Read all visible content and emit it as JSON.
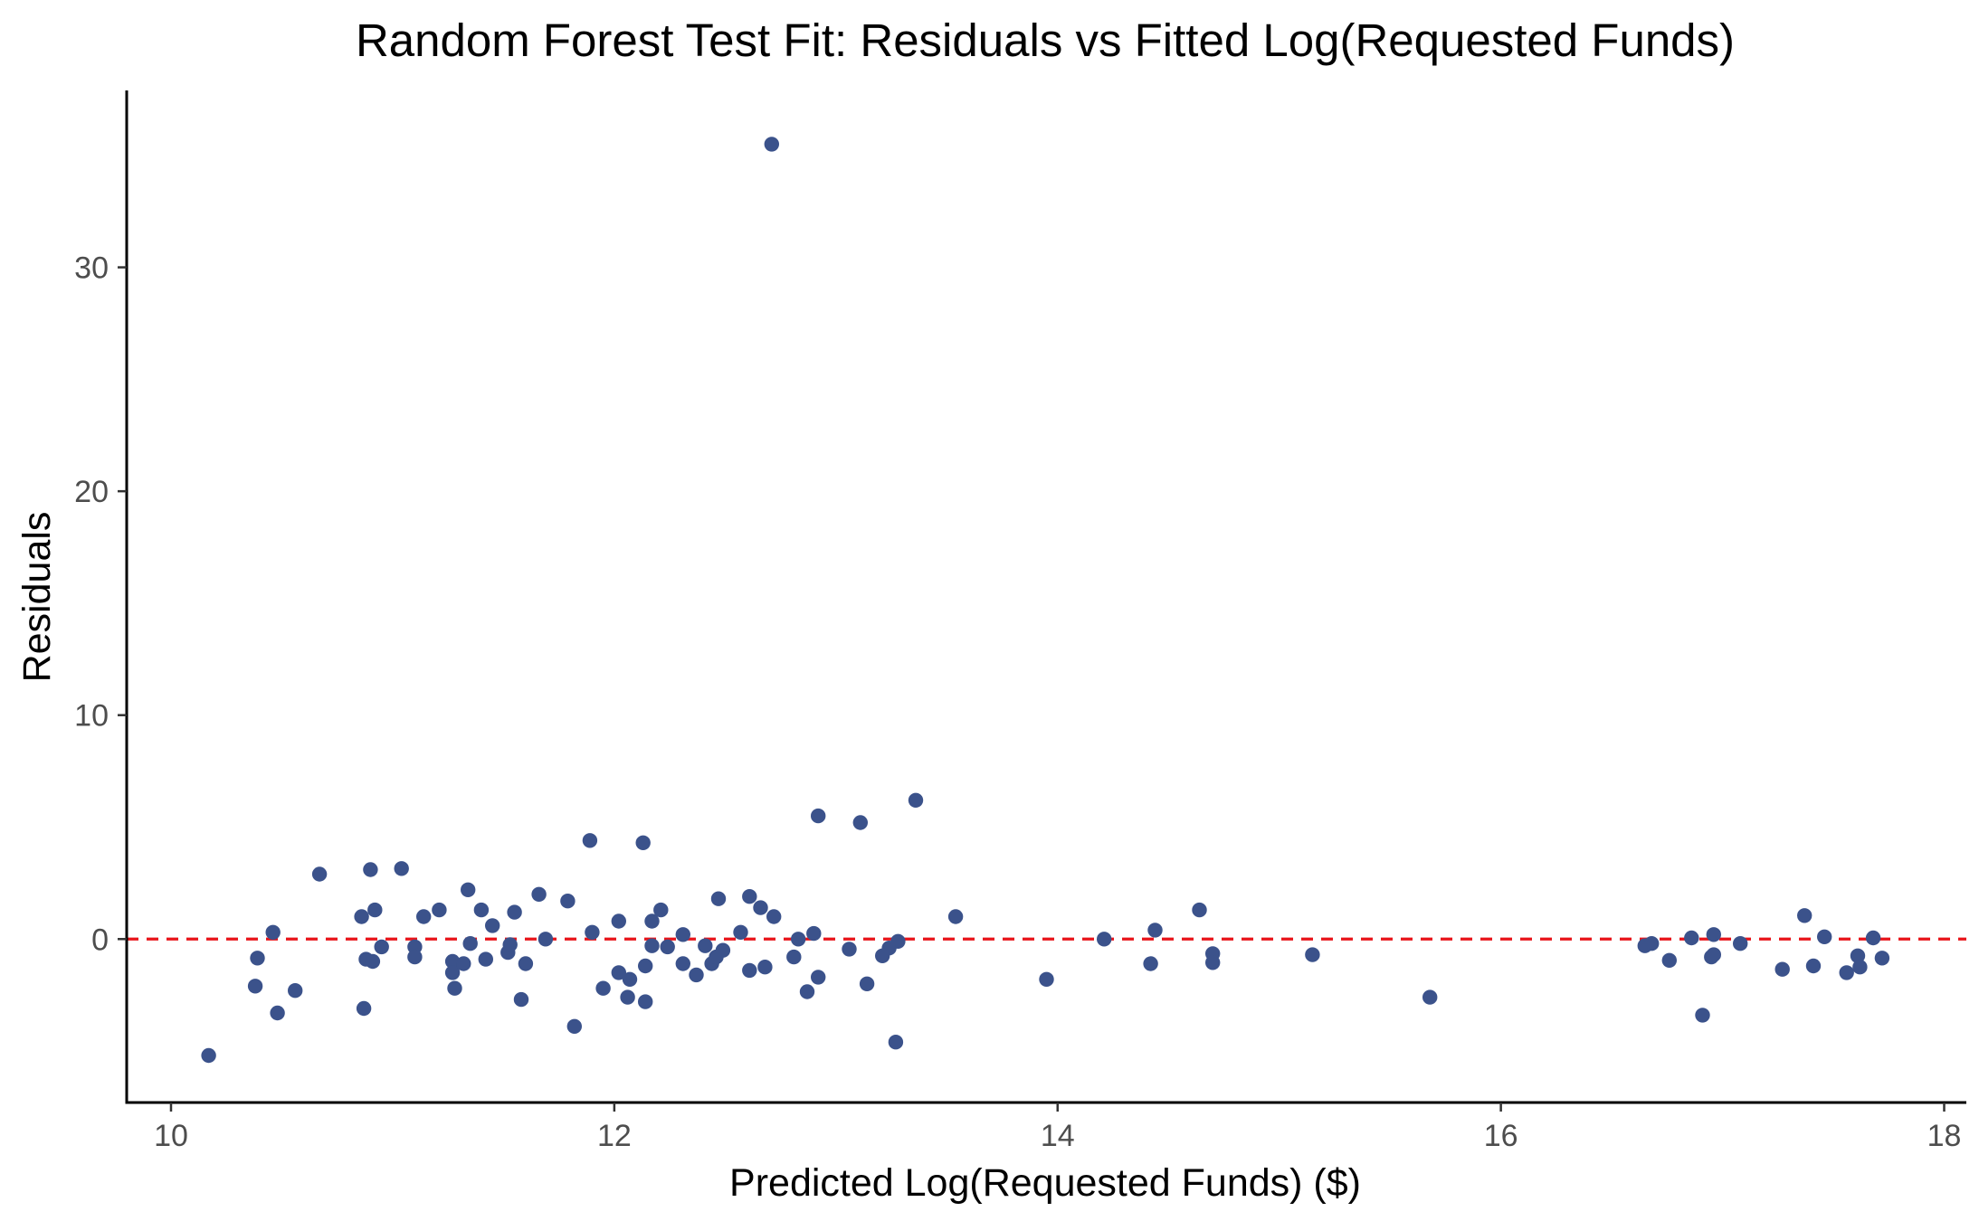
{
  "chart_data": {
    "type": "scatter",
    "title": "Random Forest Test Fit: Residuals vs Fitted Log(Requested Funds)",
    "xlabel": "Predicted Log(Requested Funds) ($)",
    "ylabel": "Residuals",
    "xlim": [
      9.8,
      18.1
    ],
    "ylim": [
      -7.3,
      37.9
    ],
    "xticks": [
      10,
      12,
      14,
      16,
      18
    ],
    "yticks": [
      0,
      10,
      20,
      30
    ],
    "grid": false,
    "reference_line": {
      "y": 0,
      "style": "dashed",
      "color": "#e8141a"
    },
    "point_color": "#3b528b",
    "axis_color": "#000000",
    "points": [
      {
        "x": 10.17,
        "y": -5.2
      },
      {
        "x": 10.38,
        "y": -2.1
      },
      {
        "x": 10.39,
        "y": -0.85
      },
      {
        "x": 10.46,
        "y": 0.3
      },
      {
        "x": 10.48,
        "y": -3.3
      },
      {
        "x": 10.56,
        "y": -2.3
      },
      {
        "x": 10.67,
        "y": 2.9
      },
      {
        "x": 10.86,
        "y": 1.0
      },
      {
        "x": 10.87,
        "y": -3.1
      },
      {
        "x": 10.88,
        "y": -0.9
      },
      {
        "x": 10.9,
        "y": 3.1
      },
      {
        "x": 10.91,
        "y": -1.0
      },
      {
        "x": 10.92,
        "y": 1.3
      },
      {
        "x": 10.95,
        "y": -0.35
      },
      {
        "x": 11.04,
        "y": 3.15
      },
      {
        "x": 11.1,
        "y": -0.35
      },
      {
        "x": 11.1,
        "y": -0.8
      },
      {
        "x": 11.14,
        "y": 1.0
      },
      {
        "x": 11.21,
        "y": 1.3
      },
      {
        "x": 11.27,
        "y": -1.0
      },
      {
        "x": 11.27,
        "y": -1.5
      },
      {
        "x": 11.28,
        "y": -2.2
      },
      {
        "x": 11.32,
        "y": -1.1
      },
      {
        "x": 11.34,
        "y": 2.2
      },
      {
        "x": 11.35,
        "y": -0.2
      },
      {
        "x": 11.4,
        "y": 1.3
      },
      {
        "x": 11.42,
        "y": -0.9
      },
      {
        "x": 11.45,
        "y": 0.6
      },
      {
        "x": 11.52,
        "y": -0.6
      },
      {
        "x": 11.53,
        "y": -0.25
      },
      {
        "x": 11.55,
        "y": 1.2
      },
      {
        "x": 11.58,
        "y": -2.7
      },
      {
        "x": 11.6,
        "y": -1.1
      },
      {
        "x": 11.66,
        "y": 2.0
      },
      {
        "x": 11.69,
        "y": 0.0
      },
      {
        "x": 11.79,
        "y": 1.7
      },
      {
        "x": 11.82,
        "y": -3.9
      },
      {
        "x": 11.89,
        "y": 4.4
      },
      {
        "x": 11.9,
        "y": 0.3
      },
      {
        "x": 11.95,
        "y": -2.2
      },
      {
        "x": 12.02,
        "y": -1.5
      },
      {
        "x": 12.02,
        "y": 0.8
      },
      {
        "x": 12.06,
        "y": -2.6
      },
      {
        "x": 12.07,
        "y": -1.8
      },
      {
        "x": 12.13,
        "y": 4.3
      },
      {
        "x": 12.14,
        "y": -1.2
      },
      {
        "x": 12.14,
        "y": -2.8
      },
      {
        "x": 12.17,
        "y": 0.8
      },
      {
        "x": 12.17,
        "y": -0.3
      },
      {
        "x": 12.21,
        "y": 1.3
      },
      {
        "x": 12.24,
        "y": -0.35
      },
      {
        "x": 12.31,
        "y": 0.2
      },
      {
        "x": 12.31,
        "y": -1.1
      },
      {
        "x": 12.37,
        "y": -1.6
      },
      {
        "x": 12.41,
        "y": -0.3
      },
      {
        "x": 12.44,
        "y": -1.1
      },
      {
        "x": 12.46,
        "y": -0.8
      },
      {
        "x": 12.47,
        "y": 1.8
      },
      {
        "x": 12.49,
        "y": -0.5
      },
      {
        "x": 12.57,
        "y": 0.3
      },
      {
        "x": 12.61,
        "y": 1.9
      },
      {
        "x": 12.61,
        "y": -1.4
      },
      {
        "x": 12.66,
        "y": 1.4
      },
      {
        "x": 12.68,
        "y": -1.25
      },
      {
        "x": 12.71,
        "y": 35.5
      },
      {
        "x": 12.72,
        "y": 1.0
      },
      {
        "x": 12.81,
        "y": -0.8
      },
      {
        "x": 12.83,
        "y": 0.0
      },
      {
        "x": 12.87,
        "y": -2.35
      },
      {
        "x": 12.9,
        "y": 0.25
      },
      {
        "x": 12.92,
        "y": 5.5
      },
      {
        "x": 12.92,
        "y": -1.7
      },
      {
        "x": 13.06,
        "y": -0.45
      },
      {
        "x": 13.11,
        "y": 5.2
      },
      {
        "x": 13.14,
        "y": -2.0
      },
      {
        "x": 13.21,
        "y": -0.75
      },
      {
        "x": 13.24,
        "y": -0.4
      },
      {
        "x": 13.27,
        "y": -4.6
      },
      {
        "x": 13.28,
        "y": -0.1
      },
      {
        "x": 13.36,
        "y": 6.2
      },
      {
        "x": 13.54,
        "y": 1.0
      },
      {
        "x": 13.95,
        "y": -1.8
      },
      {
        "x": 14.21,
        "y": 0.0
      },
      {
        "x": 14.42,
        "y": -1.1
      },
      {
        "x": 14.44,
        "y": 0.4
      },
      {
        "x": 14.64,
        "y": 1.3
      },
      {
        "x": 14.7,
        "y": -0.65
      },
      {
        "x": 14.7,
        "y": -1.05
      },
      {
        "x": 15.15,
        "y": -0.7
      },
      {
        "x": 15.68,
        "y": -2.6
      },
      {
        "x": 16.65,
        "y": -0.3
      },
      {
        "x": 16.68,
        "y": -0.2
      },
      {
        "x": 16.76,
        "y": -0.95
      },
      {
        "x": 16.86,
        "y": 0.05
      },
      {
        "x": 16.91,
        "y": -3.4
      },
      {
        "x": 16.95,
        "y": -0.8
      },
      {
        "x": 16.96,
        "y": 0.2
      },
      {
        "x": 16.96,
        "y": -0.7
      },
      {
        "x": 17.08,
        "y": -0.2
      },
      {
        "x": 17.27,
        "y": -1.35
      },
      {
        "x": 17.37,
        "y": 1.05
      },
      {
        "x": 17.41,
        "y": -1.2
      },
      {
        "x": 17.46,
        "y": 0.1
      },
      {
        "x": 17.56,
        "y": -1.5
      },
      {
        "x": 17.61,
        "y": -0.75
      },
      {
        "x": 17.62,
        "y": -1.25
      },
      {
        "x": 17.68,
        "y": 0.05
      },
      {
        "x": 17.72,
        "y": -0.85
      }
    ]
  }
}
